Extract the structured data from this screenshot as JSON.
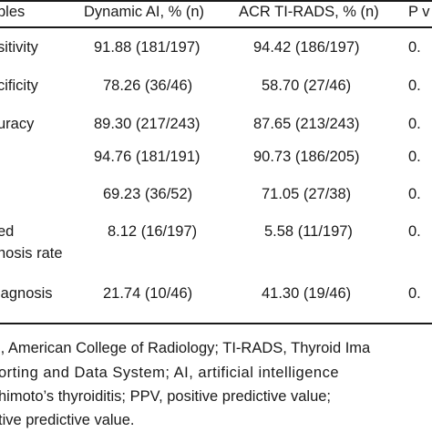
{
  "table": {
    "headers": [
      "bles",
      "Dynamic AI, % (n)",
      "ACR TI-RADS, % (n)",
      "P v"
    ],
    "rows": [
      [
        "sitivity",
        "91.88 (181/197)",
        "94.42 (186/197)",
        "0."
      ],
      [
        "cificity",
        "78.26 (36/46)",
        "58.70 (27/46)",
        "0."
      ],
      [
        "uracy",
        "89.30 (217/243)",
        "87.65 (213/243)",
        "0."
      ],
      [
        "",
        "94.76 (181/191)",
        "90.73 (186/205)",
        "0."
      ],
      [
        "",
        "69.23 (36/52)",
        "71.05 (27/38)",
        "0."
      ],
      [
        "ed",
        "8.12 (16/197)",
        "5.58 (11/197)",
        "0."
      ],
      [
        "nosis rate",
        "",
        "",
        ""
      ],
      [
        "iagnosis",
        "21.74 (10/46)",
        "41.30 (19/46)",
        "0."
      ]
    ]
  },
  "footnote": {
    "lines": [
      "I, American College of Radiology; TI-RADS, Thyroid Ima",
      "orting and Data System; AI, artificial intelligence",
      "himoto’s thyroiditis; PPV, positive predictive value;",
      "tive predictive value."
    ]
  }
}
